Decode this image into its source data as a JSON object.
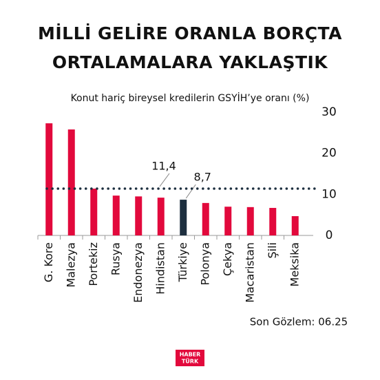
{
  "chart_data": {
    "type": "bar",
    "title": [
      "MİLLİ GELİRE ORANLA BORÇTA",
      "ORTALAMALARA YAKLAŞTIK"
    ],
    "subtitle": "Konut hariç bireysel kredilerin GSYİH’ye oranı (%)",
    "categories": [
      "G. Kore",
      "Malezya",
      "Portekiz",
      "Rusya",
      "Endonezya",
      "Hindistan",
      "Türkiye",
      "Polonya",
      "Çekya",
      "Macaristan",
      "Şili",
      "Meksika"
    ],
    "values": [
      27.3,
      25.8,
      11.4,
      9.7,
      9.5,
      9.2,
      8.7,
      7.9,
      7.0,
      6.9,
      6.7,
      4.7
    ],
    "value_labels": [
      null,
      null,
      null,
      null,
      null,
      null,
      "8,7",
      null,
      null,
      null,
      null,
      null
    ],
    "colors": [
      "#e2093c",
      "#e2093c",
      "#e2093c",
      "#e2093c",
      "#e2093c",
      "#e2093c",
      "#1d2f3f",
      "#e2093c",
      "#e2093c",
      "#e2093c",
      "#e2093c",
      "#e2093c"
    ],
    "average": {
      "value": 11.4,
      "label": "11,4",
      "color": "#1d2f3f"
    },
    "ylim": [
      0,
      30
    ],
    "yticks": [
      0,
      10,
      20,
      30
    ],
    "y_axis_side": "right",
    "grid": false,
    "note": "Son Gözlem: 06.25",
    "logo": [
      "HABER",
      "TÜRK"
    ]
  }
}
